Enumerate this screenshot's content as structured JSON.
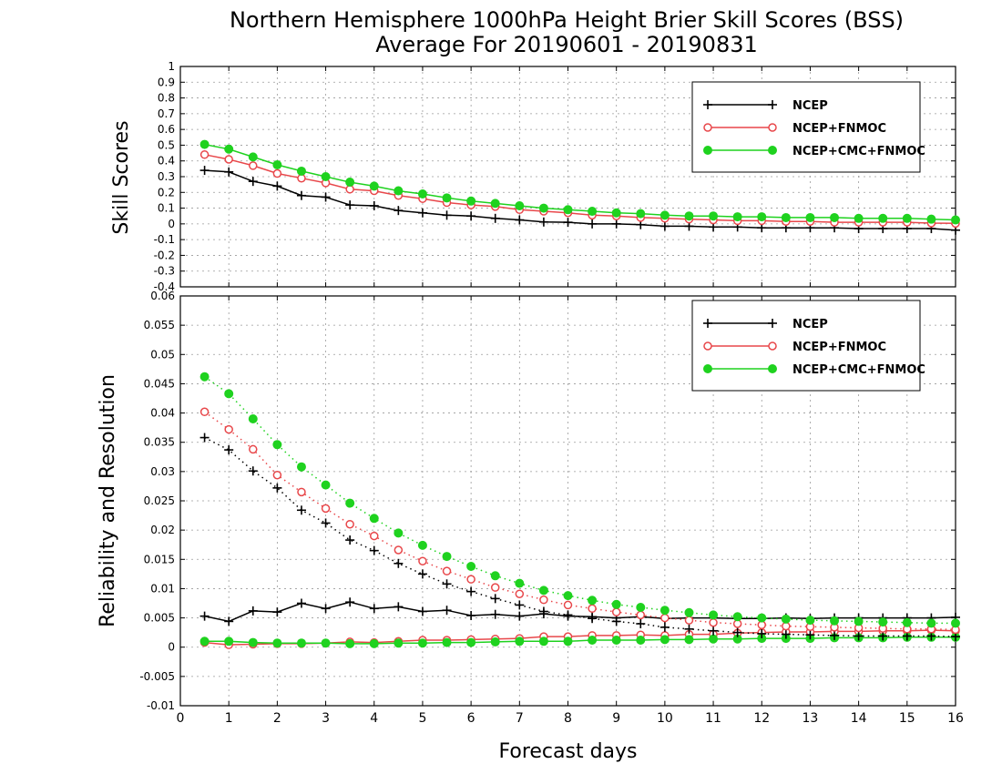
{
  "title": {
    "line1": "Northern Hemisphere 1000hPa Height Brier Skill Scores (BSS)",
    "line2": "Average For 20190601 - 20190831"
  },
  "colors": {
    "ncep": "#000000",
    "fnmoc": "#e8474a",
    "cmc": "#1fd21f"
  },
  "chart_data": [
    {
      "type": "line",
      "ylabel": "Skill Scores",
      "xlabel": "",
      "xlim": [
        0,
        16
      ],
      "ylim": [
        -0.4,
        1
      ],
      "yticks": [
        "-0.4",
        "-0.3",
        "-0.2",
        "-0.1",
        "0",
        "0.1",
        "0.2",
        "0.3",
        "0.4",
        "0.5",
        "0.6",
        "0.7",
        "0.8",
        "0.9",
        "1"
      ],
      "grid": true,
      "legend_position": "top-right",
      "x": [
        0.5,
        1,
        1.5,
        2,
        2.5,
        3,
        3.5,
        4,
        4.5,
        5,
        5.5,
        6,
        6.5,
        7,
        7.5,
        8,
        8.5,
        9,
        9.5,
        10,
        10.5,
        11,
        11.5,
        12,
        12.5,
        13,
        13.5,
        14,
        14.5,
        15,
        15.5,
        16
      ],
      "series": [
        {
          "name": "NCEP",
          "marker": "plus",
          "style": "solid",
          "values": [
            0.34,
            0.33,
            0.27,
            0.24,
            0.18,
            0.17,
            0.12,
            0.115,
            0.085,
            0.07,
            0.055,
            0.05,
            0.035,
            0.025,
            0.012,
            0.01,
            0.0,
            0.0,
            -0.005,
            -0.015,
            -0.015,
            -0.02,
            -0.02,
            -0.025,
            -0.025,
            -0.025,
            -0.025,
            -0.03,
            -0.03,
            -0.03,
            -0.03,
            -0.04
          ]
        },
        {
          "name": "NCEP+FNMOC",
          "marker": "circle-open",
          "style": "solid",
          "values": [
            0.44,
            0.41,
            0.37,
            0.32,
            0.29,
            0.26,
            0.22,
            0.21,
            0.18,
            0.16,
            0.135,
            0.12,
            0.11,
            0.09,
            0.08,
            0.07,
            0.055,
            0.05,
            0.04,
            0.035,
            0.03,
            0.025,
            0.02,
            0.02,
            0.015,
            0.015,
            0.01,
            0.01,
            0.01,
            0.01,
            0.005,
            0.003
          ]
        },
        {
          "name": "NCEP+CMC+FNMOC",
          "marker": "circle-filled",
          "style": "solid",
          "values": [
            0.505,
            0.475,
            0.425,
            0.375,
            0.335,
            0.3,
            0.265,
            0.24,
            0.21,
            0.19,
            0.165,
            0.145,
            0.13,
            0.115,
            0.1,
            0.09,
            0.08,
            0.07,
            0.065,
            0.055,
            0.05,
            0.05,
            0.045,
            0.045,
            0.04,
            0.04,
            0.04,
            0.035,
            0.035,
            0.035,
            0.03,
            0.025
          ]
        }
      ]
    },
    {
      "type": "line",
      "ylabel": "Reliability and Resolution",
      "xlabel": "Forecast days",
      "xlim": [
        0,
        16
      ],
      "ylim": [
        -0.01,
        0.06
      ],
      "xticks": [
        "0",
        "1",
        "2",
        "3",
        "4",
        "5",
        "6",
        "7",
        "8",
        "9",
        "10",
        "11",
        "12",
        "13",
        "14",
        "15",
        "16"
      ],
      "yticks": [
        "-0.01",
        "-0.005",
        "0",
        "0.005",
        "0.01",
        "0.015",
        "0.02",
        "0.025",
        "0.03",
        "0.035",
        "0.04",
        "0.045",
        "0.05",
        "0.055",
        "0.06"
      ],
      "grid": true,
      "legend_position": "top-right",
      "x": [
        0.5,
        1,
        1.5,
        2,
        2.5,
        3,
        3.5,
        4,
        4.5,
        5,
        5.5,
        6,
        6.5,
        7,
        7.5,
        8,
        8.5,
        9,
        9.5,
        10,
        10.5,
        11,
        11.5,
        12,
        12.5,
        13,
        13.5,
        14,
        14.5,
        15,
        15.5,
        16
      ],
      "series": [
        {
          "name": "NCEP",
          "marker": "plus",
          "style": "solid",
          "values": [
            0.0053,
            0.0044,
            0.0062,
            0.006,
            0.0075,
            0.0066,
            0.0077,
            0.0066,
            0.0069,
            0.0061,
            0.0063,
            0.0054,
            0.0056,
            0.0053,
            0.0057,
            0.0053,
            0.0052,
            0.005,
            0.0052,
            0.0049,
            0.005,
            0.005,
            0.0049,
            0.0049,
            0.005,
            0.0049,
            0.005,
            0.005,
            0.005,
            0.005,
            0.005,
            0.0051
          ]
        },
        {
          "name": "NCEP+FNMOC",
          "marker": "circle-open",
          "style": "solid",
          "values": [
            0.0008,
            0.0004,
            0.0005,
            0.0006,
            0.0006,
            0.0007,
            0.0009,
            0.0008,
            0.001,
            0.0012,
            0.0012,
            0.0013,
            0.0014,
            0.0015,
            0.0018,
            0.0018,
            0.002,
            0.002,
            0.0021,
            0.002,
            0.0022,
            0.0022,
            0.0024,
            0.0025,
            0.0026,
            0.0026,
            0.0027,
            0.0027,
            0.0028,
            0.0028,
            0.0029,
            0.0028
          ]
        },
        {
          "name": "NCEP+CMC+FNMOC",
          "marker": "circle-filled",
          "style": "solid",
          "values": [
            0.001,
            0.001,
            0.0008,
            0.0007,
            0.0007,
            0.0007,
            0.0006,
            0.0006,
            0.0007,
            0.0007,
            0.0008,
            0.0008,
            0.0009,
            0.001,
            0.001,
            0.001,
            0.0012,
            0.0012,
            0.0012,
            0.0013,
            0.0013,
            0.0014,
            0.0014,
            0.0015,
            0.0015,
            0.0015,
            0.0016,
            0.0016,
            0.0016,
            0.0017,
            0.0017,
            0.0017
          ]
        },
        {
          "name": "NCEP",
          "marker": "plus",
          "style": "dotted",
          "legend": false,
          "values": [
            0.0358,
            0.0337,
            0.0301,
            0.0272,
            0.0234,
            0.0212,
            0.0183,
            0.0165,
            0.0143,
            0.0125,
            0.0108,
            0.0095,
            0.0083,
            0.0072,
            0.0061,
            0.0055,
            0.0049,
            0.0044,
            0.004,
            0.0034,
            0.0031,
            0.0028,
            0.0025,
            0.0023,
            0.0022,
            0.0021,
            0.002,
            0.0019,
            0.0019,
            0.0019,
            0.0019,
            0.0018
          ]
        },
        {
          "name": "NCEP+FNMOC",
          "marker": "circle-open",
          "style": "dotted",
          "legend": false,
          "values": [
            0.0402,
            0.0372,
            0.0338,
            0.0294,
            0.0265,
            0.0237,
            0.021,
            0.019,
            0.0166,
            0.0147,
            0.013,
            0.0116,
            0.0102,
            0.0091,
            0.0081,
            0.0072,
            0.0066,
            0.006,
            0.0055,
            0.005,
            0.0046,
            0.0042,
            0.004,
            0.0038,
            0.0036,
            0.0035,
            0.0034,
            0.0033,
            0.0032,
            0.0031,
            0.0031,
            0.003
          ]
        },
        {
          "name": "NCEP+CMC+FNMOC",
          "marker": "circle-filled",
          "style": "dotted",
          "legend": false,
          "values": [
            0.0462,
            0.0433,
            0.039,
            0.0346,
            0.0308,
            0.0277,
            0.0246,
            0.022,
            0.0195,
            0.0174,
            0.0155,
            0.0138,
            0.0122,
            0.0109,
            0.0097,
            0.0088,
            0.008,
            0.0073,
            0.0068,
            0.0063,
            0.0059,
            0.0055,
            0.0052,
            0.005,
            0.0048,
            0.0046,
            0.0045,
            0.0044,
            0.0043,
            0.0042,
            0.0041,
            0.0041
          ]
        }
      ]
    }
  ]
}
